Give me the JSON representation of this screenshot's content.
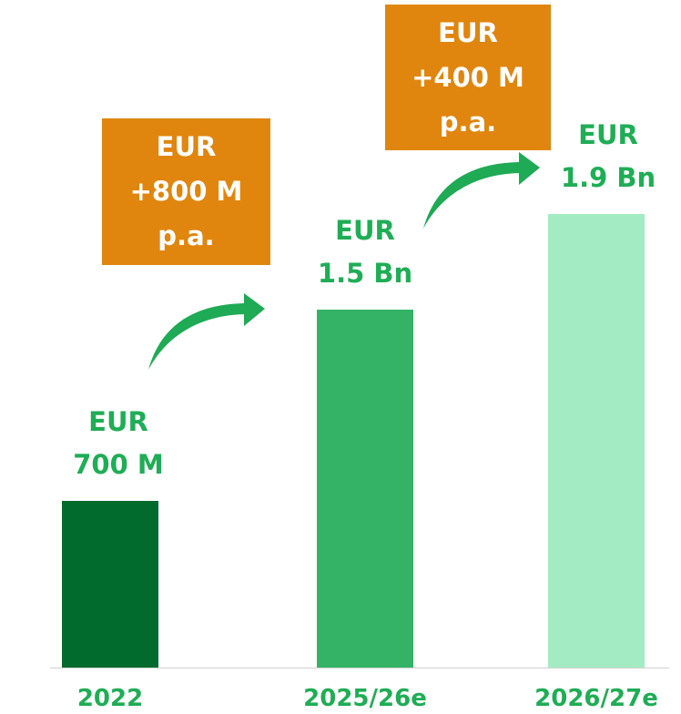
{
  "chart_data": {
    "type": "bar",
    "categories": [
      "2022",
      "2025/26e",
      "2026/27e"
    ],
    "values": [
      700,
      1500,
      1900
    ],
    "value_labels": [
      "EUR\n700 M",
      "EUR\n1.5 Bn",
      "EUR\n1.9 Bn"
    ],
    "colors": [
      "#006b2c",
      "#34b366",
      "#a3ecc3"
    ],
    "annotations": [
      "EUR\n+800 M\np.a.",
      "EUR\n+400 M\np.a."
    ]
  }
}
